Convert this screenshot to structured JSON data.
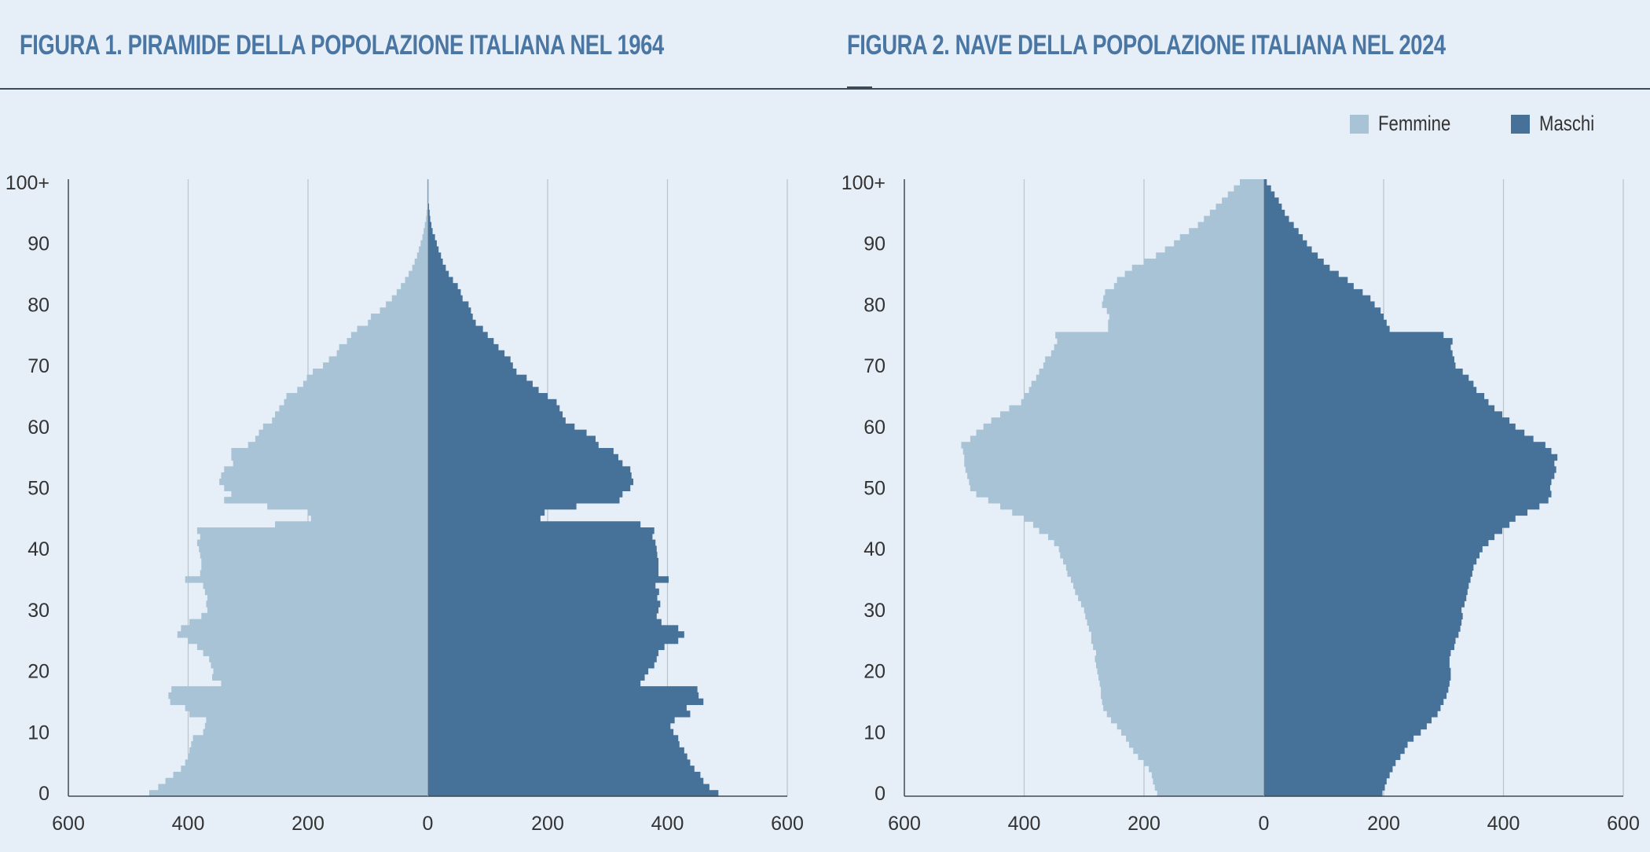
{
  "figures": [
    {
      "title": "FIGURA 1. PIRAMIDE DELLA POPOLAZIONE ITALIANA NEL 1964"
    },
    {
      "title": "FIGURA 2. NAVE DELLA POPOLAZIONE ITALIANA NEL 2024"
    }
  ],
  "legend": {
    "femmine": {
      "label": "Femmine",
      "color": "#a9c3d6"
    },
    "maschi": {
      "label": "Maschi",
      "color": "#467199"
    }
  },
  "chart_data": [
    {
      "type": "bar",
      "orientation": "horizontal-pyramid",
      "title": "FIGURA 1. PIRAMIDE DELLA POPOLAZIONE ITALIANA NEL 1964",
      "xlim": [
        -600,
        600
      ],
      "x_ticks": [
        "600",
        "400",
        "200",
        "0",
        "200",
        "400",
        "600"
      ],
      "y_ticks": [
        "0",
        "10",
        "20",
        "30",
        "40",
        "50",
        "60",
        "70",
        "80",
        "90",
        "100+"
      ],
      "grid": "vertical",
      "series": [
        {
          "name": "Femmine",
          "color": "#a9c3d6",
          "side": "left",
          "values": [
            465,
            450,
            438,
            425,
            412,
            405,
            400,
            398,
            395,
            392,
            375,
            372,
            370,
            398,
            405,
            430,
            433,
            428,
            345,
            360,
            358,
            362,
            365,
            375,
            385,
            400,
            418,
            412,
            398,
            378,
            368,
            370,
            368,
            372,
            375,
            405,
            380,
            378,
            378,
            380,
            382,
            385,
            380,
            385,
            255,
            195,
            200,
            268,
            340,
            328,
            340,
            348,
            345,
            340,
            325,
            328,
            328,
            300,
            288,
            282,
            275,
            260,
            255,
            248,
            240,
            236,
            218,
            208,
            202,
            192,
            175,
            165,
            152,
            148,
            135,
            128,
            118,
            100,
            95,
            80,
            70,
            60,
            52,
            45,
            38,
            32,
            26,
            22,
            18,
            15,
            12,
            9,
            7,
            5,
            3,
            2,
            1,
            1,
            1,
            1,
            1
          ]
        },
        {
          "name": "Maschi",
          "color": "#467199",
          "side": "right",
          "values": [
            485,
            470,
            460,
            455,
            445,
            438,
            433,
            428,
            420,
            418,
            410,
            405,
            412,
            438,
            432,
            460,
            452,
            450,
            355,
            362,
            368,
            378,
            382,
            385,
            395,
            418,
            428,
            418,
            390,
            382,
            385,
            388,
            383,
            386,
            380,
            402,
            385,
            385,
            385,
            383,
            382,
            380,
            375,
            378,
            355,
            188,
            195,
            248,
            320,
            325,
            338,
            343,
            340,
            338,
            325,
            318,
            310,
            285,
            280,
            265,
            245,
            230,
            225,
            220,
            215,
            200,
            185,
            175,
            165,
            148,
            142,
            138,
            128,
            118,
            110,
            100,
            92,
            80,
            75,
            72,
            68,
            58,
            55,
            50,
            42,
            35,
            30,
            25,
            22,
            18,
            15,
            12,
            8,
            6,
            4,
            3,
            2,
            1,
            1,
            1,
            1
          ]
        }
      ]
    },
    {
      "type": "bar",
      "orientation": "horizontal-pyramid",
      "title": "FIGURA 2. NAVE DELLA POPOLAZIONE ITALIANA NEL 2024",
      "xlim": [
        -600,
        600
      ],
      "x_ticks": [
        "600",
        "400",
        "200",
        "0",
        "200",
        "400",
        "600"
      ],
      "y_ticks": [
        "0",
        "10",
        "20",
        "30",
        "40",
        "50",
        "60",
        "70",
        "80",
        "90",
        "100+"
      ],
      "grid": "vertical",
      "series": [
        {
          "name": "Femmine",
          "color": "#a9c3d6",
          "side": "left",
          "values": [
            178,
            182,
            185,
            187,
            192,
            200,
            210,
            218,
            225,
            230,
            238,
            245,
            255,
            262,
            268,
            270,
            272,
            272,
            274,
            276,
            278,
            280,
            282,
            280,
            285,
            288,
            288,
            292,
            295,
            298,
            300,
            305,
            310,
            315,
            318,
            322,
            328,
            330,
            335,
            340,
            342,
            350,
            360,
            375,
            385,
            400,
            420,
            440,
            460,
            480,
            490,
            492,
            495,
            498,
            500,
            500,
            502,
            505,
            490,
            480,
            468,
            455,
            440,
            425,
            405,
            400,
            392,
            388,
            380,
            375,
            368,
            365,
            355,
            350,
            345,
            348,
            260,
            260,
            258,
            262,
            270,
            268,
            265,
            250,
            245,
            232,
            220,
            200,
            180,
            165,
            150,
            140,
            125,
            110,
            100,
            90,
            80,
            70,
            60,
            50,
            40
          ]
        },
        {
          "name": "Maschi",
          "color": "#467199",
          "side": "right",
          "values": [
            198,
            202,
            205,
            210,
            215,
            220,
            228,
            235,
            240,
            250,
            262,
            272,
            280,
            290,
            295,
            300,
            305,
            308,
            310,
            312,
            312,
            310,
            310,
            312,
            318,
            320,
            325,
            328,
            330,
            332,
            330,
            335,
            338,
            340,
            342,
            345,
            348,
            350,
            355,
            360,
            365,
            375,
            385,
            398,
            410,
            420,
            440,
            460,
            475,
            480,
            478,
            480,
            485,
            488,
            485,
            490,
            480,
            470,
            450,
            435,
            420,
            410,
            398,
            385,
            375,
            368,
            355,
            350,
            342,
            332,
            320,
            318,
            315,
            312,
            315,
            300,
            210,
            205,
            200,
            195,
            185,
            178,
            165,
            150,
            140,
            125,
            110,
            100,
            90,
            80,
            72,
            65,
            58,
            50,
            42,
            35,
            30,
            25,
            18,
            12,
            5
          ]
        }
      ]
    }
  ]
}
